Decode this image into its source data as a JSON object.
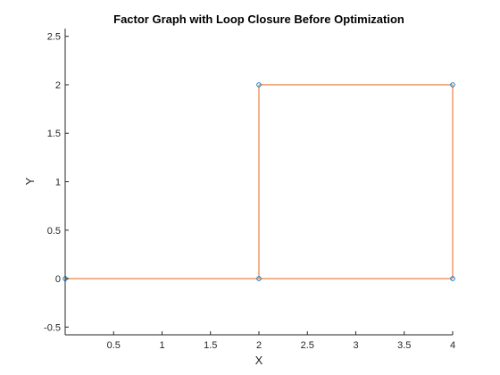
{
  "chart_data": {
    "type": "line",
    "title": "Factor Graph with Loop Closure Before Optimization",
    "xlabel": "X",
    "ylabel": "Y",
    "xlim": [
      0,
      4
    ],
    "ylim": [
      -0.58,
      2.58
    ],
    "xticks": [
      0.5,
      1,
      1.5,
      2,
      2.5,
      3,
      3.5,
      4
    ],
    "xtick_labels": [
      "0.5",
      "1",
      "1.5",
      "2",
      "2.5",
      "3",
      "3.5",
      "4"
    ],
    "yticks": [
      -0.5,
      0,
      0.5,
      1,
      1.5,
      2,
      2.5
    ],
    "ytick_labels": [
      "-0.5",
      "0",
      "0.5",
      "1",
      "1.5",
      "2",
      "2.5"
    ],
    "grid": false,
    "nodes": {
      "x": [
        0,
        2,
        4,
        4,
        2
      ],
      "y": [
        0,
        0,
        0,
        2,
        2
      ]
    },
    "edges": [
      [
        0,
        1
      ],
      [
        1,
        2
      ],
      [
        2,
        3
      ],
      [
        3,
        4
      ],
      [
        4,
        1
      ]
    ],
    "edge_color": "#F0A073",
    "node_color": "#0072BD"
  }
}
